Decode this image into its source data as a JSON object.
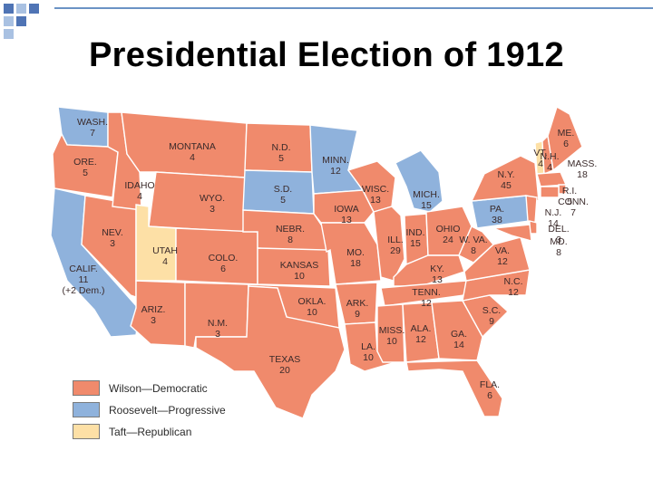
{
  "slide": {
    "title": "Presidential Election of 1912"
  },
  "colors": {
    "democratic": "#f08a6c",
    "progressive": "#8fb2dc",
    "republican": "#fde0a6",
    "border": "#ffffff",
    "corner_dark": "#4f74b5",
    "corner_light": "#a9c1e2"
  },
  "legend": {
    "items": [
      {
        "label": "Wilson—Democratic",
        "party": "democratic"
      },
      {
        "label": "Roosevelt—Progressive",
        "party": "progressive"
      },
      {
        "label": "Taft—Republican",
        "party": "republican"
      }
    ]
  },
  "states": [
    {
      "abbr": "WASH.",
      "votes": "7",
      "party": "progressive"
    },
    {
      "abbr": "ORE.",
      "votes": "5",
      "party": "democratic"
    },
    {
      "abbr": "CALIF.",
      "votes": "11",
      "note": "(+2 Dem.)",
      "party": "progressive"
    },
    {
      "abbr": "NEV.",
      "votes": "3",
      "party": "democratic"
    },
    {
      "abbr": "IDAHO",
      "votes": "4",
      "party": "democratic"
    },
    {
      "abbr": "MONTANA",
      "votes": "4",
      "party": "democratic"
    },
    {
      "abbr": "WYO.",
      "votes": "3",
      "party": "democratic"
    },
    {
      "abbr": "UTAH",
      "votes": "4",
      "party": "republican"
    },
    {
      "abbr": "COLO.",
      "votes": "6",
      "party": "democratic"
    },
    {
      "abbr": "ARIZ.",
      "votes": "3",
      "party": "democratic"
    },
    {
      "abbr": "N.M.",
      "votes": "3",
      "party": "democratic"
    },
    {
      "abbr": "N.D.",
      "votes": "5",
      "party": "democratic"
    },
    {
      "abbr": "S.D.",
      "votes": "5",
      "party": "progressive"
    },
    {
      "abbr": "NEBR.",
      "votes": "8",
      "party": "democratic"
    },
    {
      "abbr": "KANSAS",
      "votes": "10",
      "party": "democratic"
    },
    {
      "abbr": "OKLA.",
      "votes": "10",
      "party": "democratic"
    },
    {
      "abbr": "TEXAS",
      "votes": "20",
      "party": "democratic"
    },
    {
      "abbr": "MINN.",
      "votes": "12",
      "party": "progressive"
    },
    {
      "abbr": "IOWA",
      "votes": "13",
      "party": "democratic"
    },
    {
      "abbr": "MO.",
      "votes": "18",
      "party": "democratic"
    },
    {
      "abbr": "ARK.",
      "votes": "9",
      "party": "democratic"
    },
    {
      "abbr": "LA.",
      "votes": "10",
      "party": "democratic"
    },
    {
      "abbr": "WISC.",
      "votes": "13",
      "party": "democratic"
    },
    {
      "abbr": "ILL.",
      "votes": "29",
      "party": "democratic"
    },
    {
      "abbr": "MICH.",
      "votes": "15",
      "party": "progressive"
    },
    {
      "abbr": "IND.",
      "votes": "15",
      "party": "democratic"
    },
    {
      "abbr": "OHIO",
      "votes": "24",
      "party": "democratic"
    },
    {
      "abbr": "KY.",
      "votes": "13",
      "party": "democratic"
    },
    {
      "abbr": "TENN.",
      "votes": "12",
      "party": "democratic"
    },
    {
      "abbr": "MISS.",
      "votes": "10",
      "party": "democratic"
    },
    {
      "abbr": "ALA.",
      "votes": "12",
      "party": "democratic"
    },
    {
      "abbr": "GA.",
      "votes": "14",
      "party": "democratic"
    },
    {
      "abbr": "FLA.",
      "votes": "6",
      "party": "democratic"
    },
    {
      "abbr": "S.C.",
      "votes": "9",
      "party": "democratic"
    },
    {
      "abbr": "N.C.",
      "votes": "12",
      "party": "democratic"
    },
    {
      "abbr": "VA.",
      "votes": "12",
      "party": "democratic"
    },
    {
      "abbr": "W. VA.",
      "votes": "8",
      "party": "democratic"
    },
    {
      "abbr": "PA.",
      "votes": "38",
      "party": "progressive"
    },
    {
      "abbr": "N.Y.",
      "votes": "45",
      "party": "democratic"
    },
    {
      "abbr": "VT.",
      "votes": "4",
      "party": "republican"
    },
    {
      "abbr": "N.H.",
      "votes": "4",
      "party": "democratic"
    },
    {
      "abbr": "ME.",
      "votes": "6",
      "party": "democratic"
    },
    {
      "abbr": "MASS.",
      "votes": "18",
      "party": "democratic"
    },
    {
      "abbr": "R.I.",
      "votes": "5",
      "party": "democratic"
    },
    {
      "abbr": "CONN.",
      "votes": "7",
      "party": "democratic"
    },
    {
      "abbr": "N.J.",
      "votes": "14",
      "party": "democratic"
    },
    {
      "abbr": "DEL.",
      "votes": "3",
      "party": "democratic"
    },
    {
      "abbr": "MD.",
      "votes": "8",
      "party": "democratic"
    }
  ]
}
